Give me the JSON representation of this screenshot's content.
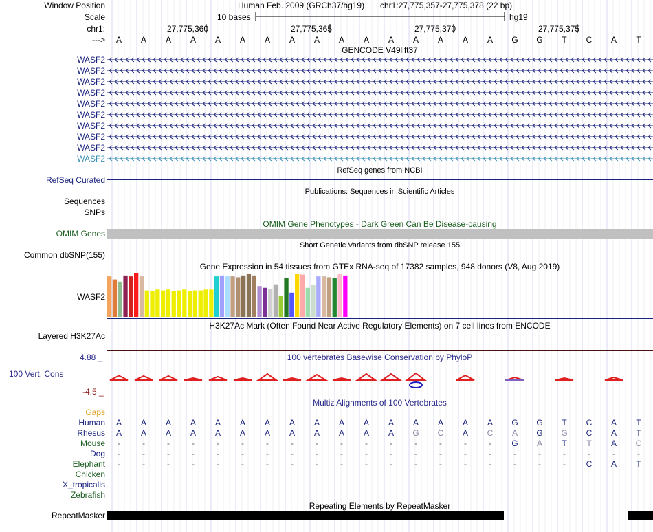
{
  "header": {
    "window_position_label": "Window Position",
    "assembly": "Human Feb. 2009 (GRCh37/hg19)",
    "position": "chr1:27,775,357-27,775,378 (22 bp)",
    "scale_label": "Scale",
    "scale_text": "10 bases",
    "scale_db": "hg19",
    "chr_label": "chr1:",
    "coords": [
      "27,775,360",
      "27,775,365",
      "27,775,370",
      "27,775,375"
    ],
    "strand_label": "--->"
  },
  "sequence": [
    "A",
    "A",
    "A",
    "A",
    "A",
    "A",
    "A",
    "A",
    "A",
    "A",
    "A",
    "A",
    "A",
    "A",
    "A",
    "A",
    "G",
    "G",
    "T",
    "C",
    "A",
    "T"
  ],
  "gencode": {
    "title": "GENCODE V49lift37",
    "genes": [
      "WASF2",
      "WASF2",
      "WASF2",
      "WASF2",
      "WASF2",
      "WASF2",
      "WASF2",
      "WASF2",
      "WASF2",
      "WASF2"
    ],
    "colors": [
      "#1a237e",
      "#1a237e",
      "#1a237e",
      "#1a237e",
      "#1a237e",
      "#1a237e",
      "#1a237e",
      "#1a237e",
      "#1a237e",
      "#3a8fb7"
    ]
  },
  "refseq": {
    "title": "RefSeq genes from NCBI",
    "label": "RefSeq Curated"
  },
  "publications": {
    "title": "Publications: Sequences in Scientific Articles",
    "labels": [
      "Sequences",
      "SNPs"
    ]
  },
  "omim": {
    "title": "OMIM Gene Phenotypes - Dark Green Can Be Disease-causing",
    "label": "OMIM Genes",
    "color": "#1b5e20"
  },
  "dbsnp": {
    "title": "Short Genetic Variants from dbSNP release 155",
    "label": "Common dbSNP(155)"
  },
  "gtex": {
    "title": "Gene Expression in 54 tissues from GTEx RNA-seq of 17382 samples, 948 donors (V8, Aug 2019)",
    "label": "WASF2",
    "bars": [
      {
        "h": 0.92,
        "c": "#f5a55c"
      },
      {
        "h": 0.85,
        "c": "#e07b39"
      },
      {
        "h": 0.8,
        "c": "#8fbc8f"
      },
      {
        "h": 0.94,
        "c": "#8b2252"
      },
      {
        "h": 0.92,
        "c": "#d02020"
      },
      {
        "h": 1.0,
        "c": "#ff1a1a"
      },
      {
        "h": 0.92,
        "c": "#d8b8a0"
      },
      {
        "h": 0.6,
        "c": "#eeee00"
      },
      {
        "h": 0.58,
        "c": "#eeee00"
      },
      {
        "h": 0.62,
        "c": "#eeee00"
      },
      {
        "h": 0.6,
        "c": "#eeee00"
      },
      {
        "h": 0.62,
        "c": "#eeee00"
      },
      {
        "h": 0.58,
        "c": "#eeee00"
      },
      {
        "h": 0.6,
        "c": "#eeee00"
      },
      {
        "h": 0.62,
        "c": "#eeee00"
      },
      {
        "h": 0.58,
        "c": "#eeee00"
      },
      {
        "h": 0.6,
        "c": "#eeee00"
      },
      {
        "h": 0.6,
        "c": "#eeee00"
      },
      {
        "h": 0.62,
        "c": "#eeee00"
      },
      {
        "h": 0.62,
        "c": "#eeee00"
      },
      {
        "h": 0.92,
        "c": "#20d0d0"
      },
      {
        "h": 0.94,
        "c": "#a0a0ff"
      },
      {
        "h": 0.92,
        "c": "#aaddff"
      },
      {
        "h": 0.92,
        "c": "#c0a080"
      },
      {
        "h": 0.9,
        "c": "#b09070"
      },
      {
        "h": 0.94,
        "c": "#8b7355"
      },
      {
        "h": 0.98,
        "c": "#8b7355"
      },
      {
        "h": 0.94,
        "c": "#a08060"
      },
      {
        "h": 0.7,
        "c": "#b08cd0"
      },
      {
        "h": 0.66,
        "c": "#7b3294"
      },
      {
        "h": 0.64,
        "c": "#d0d0d0"
      },
      {
        "h": 0.74,
        "c": "#b0b0b0"
      },
      {
        "h": 0.48,
        "c": "#99cc33"
      },
      {
        "h": 0.88,
        "c": "#227722"
      },
      {
        "h": 0.55,
        "c": "#5555ff"
      },
      {
        "h": 0.98,
        "c": "#ffd700"
      },
      {
        "h": 0.96,
        "c": "#ffaaaa"
      },
      {
        "h": 0.66,
        "c": "#99ddaa"
      },
      {
        "h": 0.72,
        "c": "#ccddcc"
      },
      {
        "h": 0.92,
        "c": "#aaaaff"
      },
      {
        "h": 0.92,
        "c": "#d8b8a0"
      },
      {
        "h": 0.9,
        "c": "#c0a080"
      },
      {
        "h": 0.88,
        "c": "#228833"
      },
      {
        "h": 0.98,
        "c": "#ffbbcc"
      },
      {
        "h": 0.94,
        "c": "#ff00ff"
      }
    ]
  },
  "h3k27ac": {
    "title": "H3K27Ac Mark (Often Found Near Active Regulatory Elements) on 7 cell lines from ENCODE",
    "label": "Layered H3K27Ac"
  },
  "phylop": {
    "title": "100 vertebrates Basewise Conservation by PhyloP",
    "label": "100 Vert. Cons",
    "max_label": "4.88 _",
    "min_label": "-4.5 _",
    "logo_heights": [
      0.45,
      0.4,
      0.4,
      0.1,
      0.3,
      0.1,
      0.7,
      0.1,
      0.6,
      0.1,
      0.7,
      0.7,
      0.8,
      0.0,
      0.5,
      0.0,
      0.2,
      0.0,
      0.1,
      0.0,
      0.2,
      0.0
    ]
  },
  "multiz": {
    "title": "Multiz Alignments of 100 Vertebrates",
    "gaps_label": "Gaps",
    "species": [
      {
        "name": "Human",
        "color": "#1a237e",
        "seq": [
          "A",
          "A",
          "A",
          "A",
          "A",
          "A",
          "A",
          "A",
          "A",
          "A",
          "A",
          "A",
          "A",
          "A",
          "A",
          "A",
          "G",
          "G",
          "T",
          "C",
          "A",
          "T"
        ],
        "dim": []
      },
      {
        "name": "Rhesus",
        "color": "#1a237e",
        "seq": [
          "A",
          "A",
          "A",
          "A",
          "A",
          "A",
          "A",
          "A",
          "A",
          "A",
          "A",
          "A",
          "G",
          "C",
          "A",
          "C",
          "A",
          "G",
          "G",
          "C",
          "A",
          "T"
        ],
        "dim": [
          12,
          13,
          15,
          16,
          18
        ]
      },
      {
        "name": "Mouse",
        "color": "#1b5e20",
        "seq": [
          "-",
          "-",
          "-",
          "-",
          "-",
          "-",
          "-",
          "-",
          "-",
          "-",
          "-",
          "-",
          "-",
          "-",
          "-",
          "-",
          "G",
          "A",
          "T",
          "T",
          "A",
          "C"
        ],
        "dim": [
          17,
          19,
          21
        ]
      },
      {
        "name": "Dog",
        "color": "#1a237e",
        "seq": [
          "-",
          "-",
          "-",
          "-",
          "-",
          "-",
          "-",
          "-",
          "-",
          "-",
          "-",
          "-",
          "-",
          "-",
          "-",
          "-",
          "-",
          "-",
          "-",
          "-",
          "-",
          "-"
        ],
        "dim": []
      },
      {
        "name": "Elephant",
        "color": "#1b5e20",
        "seq": [
          "-",
          "-",
          "-",
          "-",
          "-",
          "-",
          "-",
          "-",
          "-",
          "-",
          "-",
          "-",
          "-",
          "-",
          "-",
          "-",
          "-",
          "-",
          "-",
          "C",
          "A",
          "T"
        ],
        "dim": []
      },
      {
        "name": "Chicken",
        "color": "#1b5e20",
        "seq": [],
        "dim": []
      },
      {
        "name": "X_tropicalis",
        "color": "#1a237e",
        "seq": [],
        "dim": []
      },
      {
        "name": "Zebrafish",
        "color": "#1b5e20",
        "seq": [],
        "dim": []
      }
    ]
  },
  "repeatmasker": {
    "title": "Repeating Elements by RepeatMasker",
    "label": "RepeatMasker"
  }
}
